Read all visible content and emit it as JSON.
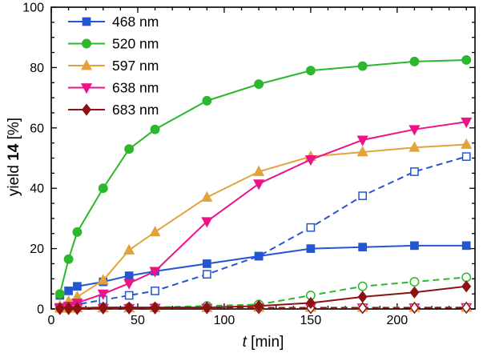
{
  "figure": {
    "background": "#ffffff",
    "frame_color": "#000000"
  },
  "chart_data": {
    "type": "line",
    "title": "",
    "xlabel": "t [min]",
    "ylabel": "yield 14 [%]",
    "xlabel_parts": {
      "italic": "t",
      "rest": " [min]"
    },
    "ylabel_parts": {
      "prefix": "yield ",
      "bold": "14",
      "suffix": " [%]"
    },
    "xlim": [
      0,
      245
    ],
    "ylim": [
      0,
      100
    ],
    "x_major_ticks": [
      0,
      50,
      100,
      150,
      200
    ],
    "x_minor_step": 10,
    "y_major_ticks": [
      0,
      20,
      40,
      60,
      80,
      100
    ],
    "y_minor_step": 5,
    "grid": false,
    "legend_position": "top-left",
    "x": [
      5,
      10,
      15,
      30,
      45,
      60,
      90,
      120,
      150,
      180,
      210,
      240
    ],
    "series": [
      {
        "name": "468 nm",
        "color": "#2356cf",
        "marker": "square",
        "line": "solid",
        "marker_fill": "filled",
        "in_legend": true,
        "values": [
          4.5,
          6,
          7.5,
          9,
          11,
          12.5,
          15,
          17.5,
          20,
          20.5,
          21,
          21
        ]
      },
      {
        "name": "520 nm",
        "color": "#2cb72c",
        "marker": "circle",
        "line": "solid",
        "marker_fill": "filled",
        "in_legend": true,
        "values": [
          5,
          16.5,
          25.5,
          40,
          53,
          59.5,
          69,
          74.5,
          79,
          80.5,
          82,
          82.5
        ]
      },
      {
        "name": "597 nm",
        "color": "#e3a33c",
        "marker": "triangle-up",
        "line": "solid",
        "marker_fill": "filled",
        "in_legend": true,
        "values": [
          1,
          2.5,
          4,
          9.5,
          19.5,
          25.5,
          37,
          45.5,
          50.5,
          52,
          53.5,
          54.5
        ]
      },
      {
        "name": "638 nm",
        "color": "#ee1289",
        "marker": "triangle-down",
        "line": "solid",
        "marker_fill": "filled",
        "in_legend": true,
        "values": [
          0.5,
          1,
          2,
          5,
          8.5,
          12.5,
          29,
          41.5,
          49.5,
          56,
          59.5,
          62
        ]
      },
      {
        "name": "683 nm",
        "color": "#8b1413",
        "marker": "diamond",
        "line": "solid",
        "marker_fill": "filled",
        "in_legend": true,
        "values": [
          0.2,
          0.3,
          0.3,
          0.5,
          0.5,
          0.5,
          0.5,
          1,
          2,
          4,
          5.5,
          7.5
        ]
      },
      {
        "name": "468 nm dashed",
        "color": "#2356cf",
        "marker": "square",
        "line": "dashed",
        "marker_fill": "open",
        "in_legend": false,
        "values": [
          0.5,
          1,
          1.5,
          3,
          4.5,
          6,
          11.5,
          17.5,
          27,
          37.5,
          45.5,
          50.5
        ]
      },
      {
        "name": "520 nm dashed",
        "color": "#2cb72c",
        "marker": "circle",
        "line": "dashed",
        "marker_fill": "open",
        "in_legend": false,
        "values": [
          0.3,
          0.3,
          0.4,
          0.5,
          0.5,
          0.5,
          1,
          1.5,
          4.5,
          7.5,
          9,
          10.5
        ]
      },
      {
        "name": "597 nm dashed",
        "color": "#e3a33c",
        "marker": "triangle-up",
        "line": "dashed",
        "marker_fill": "open",
        "in_legend": false,
        "values": [
          0.2,
          0.2,
          0.3,
          0.3,
          0.3,
          0.4,
          0.4,
          0.5,
          0.5,
          0.5,
          0.5,
          0.5
        ]
      },
      {
        "name": "638 nm dashed",
        "color": "#ee1289",
        "marker": "triangle-down",
        "line": "dashed",
        "marker_fill": "open",
        "in_legend": false,
        "values": [
          0.1,
          0.1,
          0.2,
          0.2,
          0.2,
          0.3,
          0.3,
          0.3,
          0.4,
          0.4,
          0.4,
          0.5
        ]
      },
      {
        "name": "683 nm dashed",
        "color": "#8b1413",
        "marker": "diamond",
        "line": "dashed",
        "marker_fill": "open",
        "in_legend": false,
        "values": [
          0,
          0,
          0,
          0.2,
          0.2,
          0.2,
          0.3,
          0.3,
          0.3,
          0.3,
          0.4,
          0.4
        ]
      }
    ],
    "legend_entries": [
      "468 nm",
      "520 nm",
      "597 nm",
      "638 nm",
      "683 nm"
    ]
  }
}
